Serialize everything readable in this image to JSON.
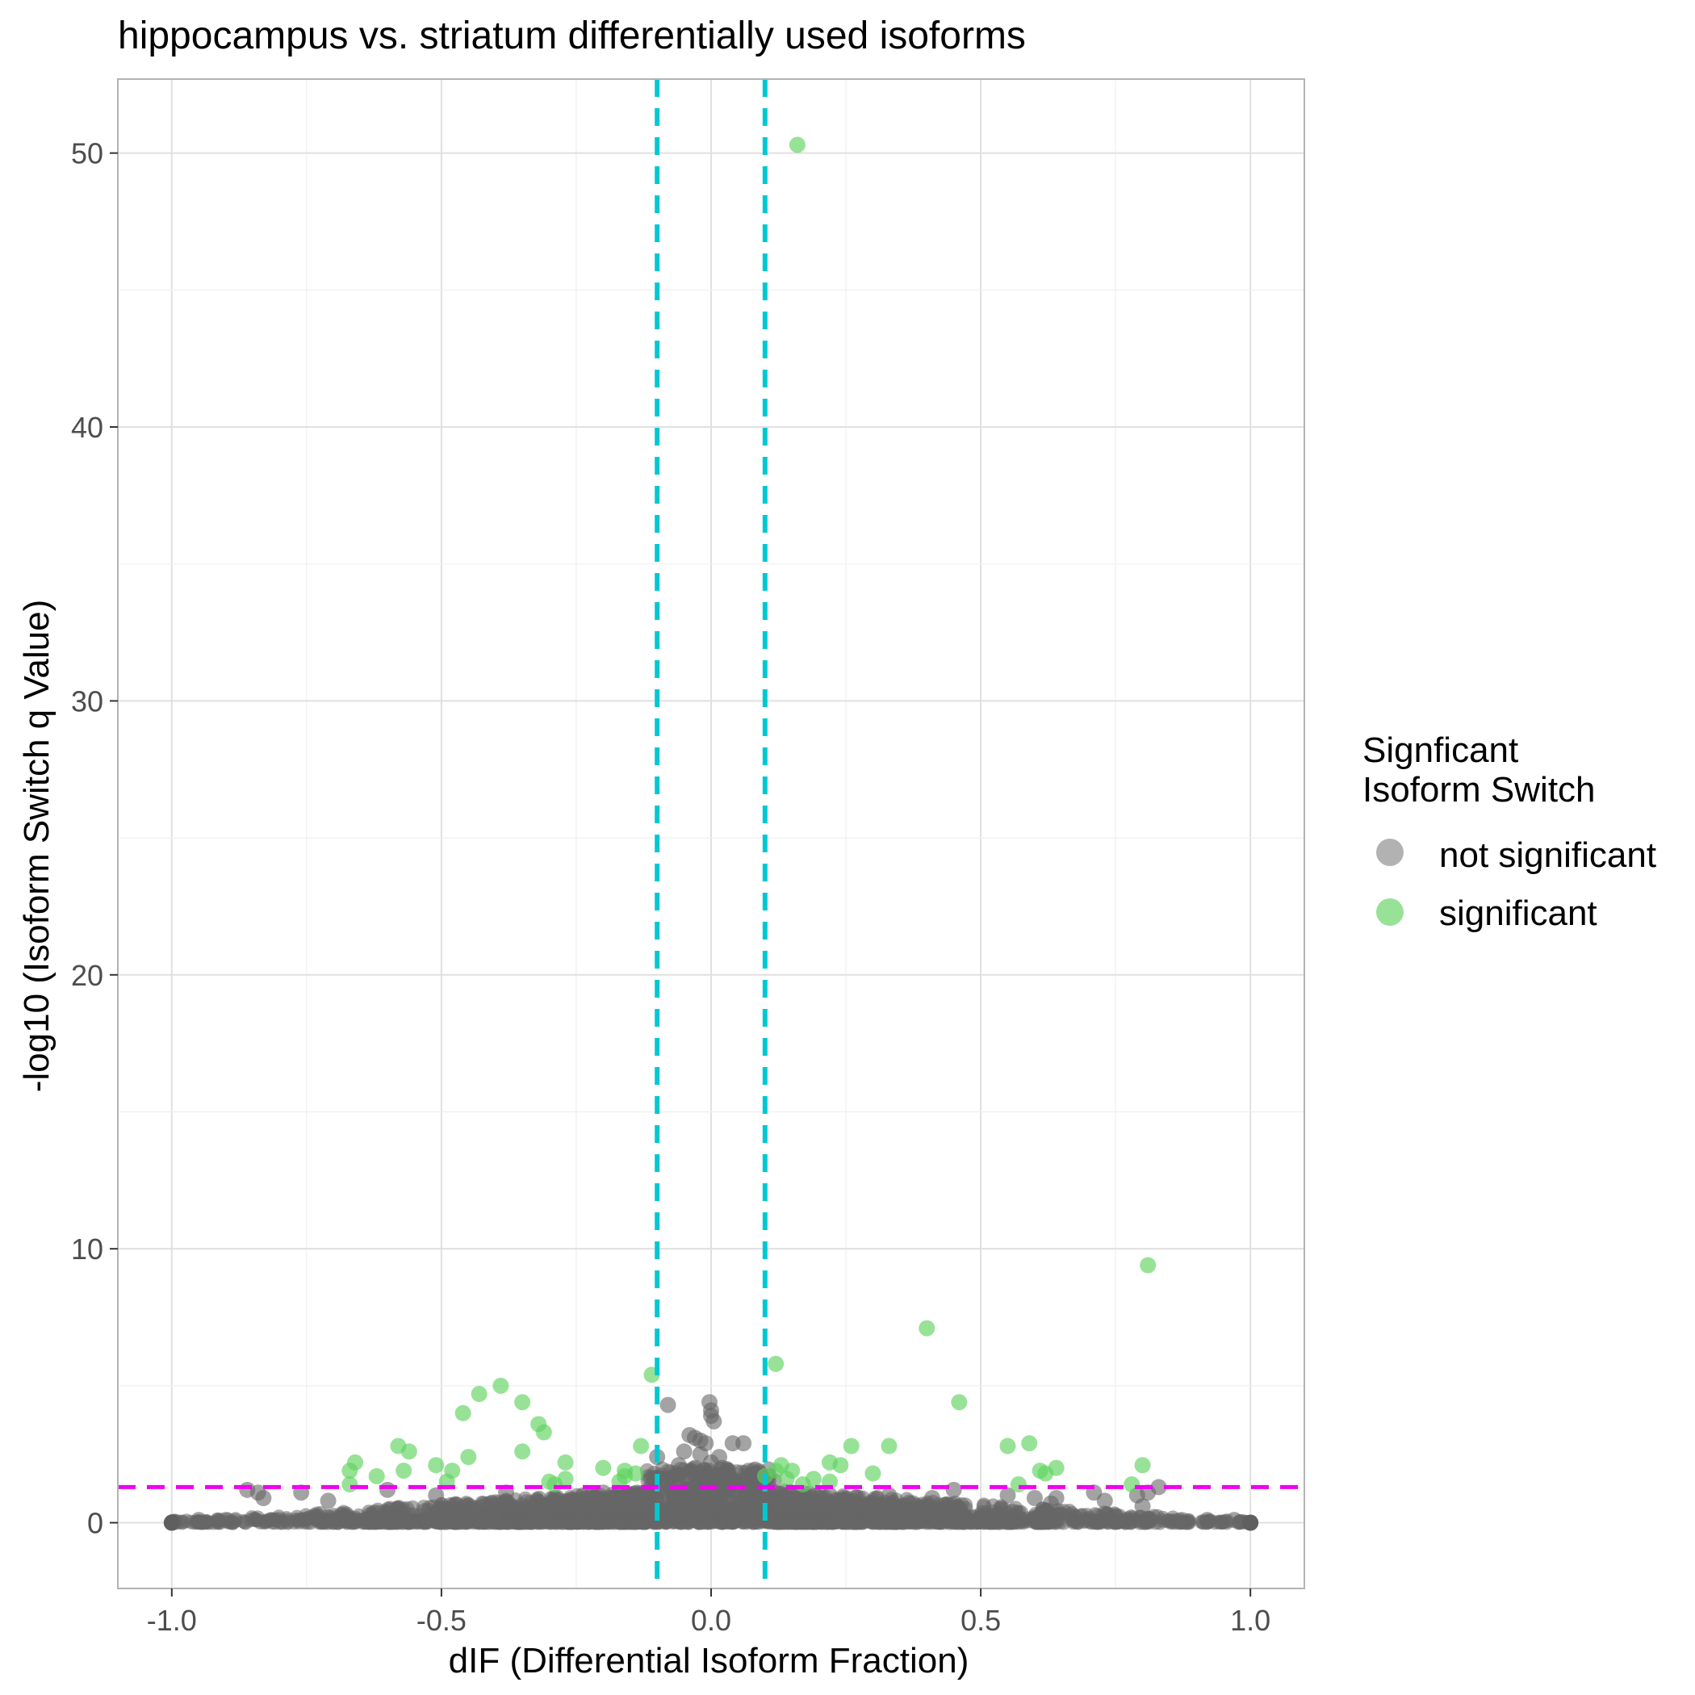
{
  "chart_data": {
    "type": "scatter",
    "title": "hippocampus vs. striatum differentially used isoforms",
    "xlabel": "dIF (Differential Isoform Fraction)",
    "ylabel": "-log10 (Isoform Switch q Value)",
    "xlim": [
      -1.1,
      1.1
    ],
    "ylim": [
      -2.4,
      52.7
    ],
    "x_ticks": [
      -1.0,
      -0.5,
      0.0,
      0.5,
      1.0
    ],
    "x_tick_labels": [
      "-1.0",
      "-0.5",
      "0.0",
      "0.5",
      "1.0"
    ],
    "y_ticks": [
      0,
      10,
      20,
      30,
      40,
      50
    ],
    "y_tick_labels": [
      "0",
      "10",
      "20",
      "30",
      "40",
      "50"
    ],
    "grid": true,
    "legend": {
      "title": "Signficant\nIsoform Switch",
      "placement": "right",
      "entries": [
        {
          "label": "not significant",
          "color": "#666666"
        },
        {
          "label": "significant",
          "color": "#5fd35f"
        }
      ]
    },
    "reference_lines": {
      "vertical_x": [
        -0.1,
        0.1
      ],
      "vertical_color": "#00c8d2",
      "horizontal_y": [
        1.3
      ],
      "horizontal_color": "#ee00ee"
    },
    "series": [
      {
        "name": "significant",
        "color": "#5fd35f",
        "points": [
          [
            0.16,
            50.3
          ],
          [
            0.81,
            9.4
          ],
          [
            0.4,
            7.1
          ],
          [
            -0.11,
            5.4
          ],
          [
            0.12,
            5.8
          ],
          [
            -0.39,
            5.0
          ],
          [
            -0.43,
            4.7
          ],
          [
            -0.35,
            4.4
          ],
          [
            0.46,
            4.4
          ],
          [
            -0.46,
            4.0
          ],
          [
            -0.32,
            3.6
          ],
          [
            -0.31,
            3.3
          ],
          [
            0.55,
            2.8
          ],
          [
            0.59,
            2.9
          ],
          [
            0.33,
            2.8
          ],
          [
            0.26,
            2.8
          ],
          [
            -0.58,
            2.8
          ],
          [
            -0.56,
            2.6
          ],
          [
            -0.35,
            2.6
          ],
          [
            -0.13,
            2.8
          ],
          [
            -0.45,
            2.4
          ],
          [
            -0.66,
            2.2
          ],
          [
            -0.67,
            1.9
          ],
          [
            -0.62,
            1.7
          ],
          [
            -0.51,
            2.1
          ],
          [
            -0.57,
            1.9
          ],
          [
            -0.48,
            1.9
          ],
          [
            -0.27,
            2.2
          ],
          [
            -0.2,
            2.0
          ],
          [
            -0.16,
            1.9
          ],
          [
            -0.16,
            1.7
          ],
          [
            -0.14,
            1.8
          ],
          [
            -0.17,
            1.5
          ],
          [
            0.13,
            2.1
          ],
          [
            0.12,
            1.9
          ],
          [
            0.15,
            1.9
          ],
          [
            0.14,
            1.6
          ],
          [
            0.17,
            1.4
          ],
          [
            0.19,
            1.6
          ],
          [
            0.22,
            2.2
          ],
          [
            0.24,
            2.1
          ],
          [
            0.22,
            1.5
          ],
          [
            0.3,
            1.8
          ],
          [
            0.8,
            2.1
          ],
          [
            0.61,
            1.9
          ],
          [
            0.62,
            1.8
          ],
          [
            0.64,
            2.0
          ],
          [
            -0.67,
            1.4
          ],
          [
            -0.3,
            1.5
          ],
          [
            -0.29,
            1.4
          ],
          [
            -0.27,
            1.6
          ],
          [
            -0.49,
            1.5
          ],
          [
            0.57,
            1.4
          ],
          [
            0.78,
            1.4
          ],
          [
            0.1,
            1.7
          ]
        ]
      },
      {
        "name": "not significant",
        "color": "#666666",
        "points": [
          [
            -0.08,
            4.3
          ],
          [
            -0.003,
            4.4
          ],
          [
            0.0,
            4.1
          ],
          [
            0.0,
            3.9
          ],
          [
            0.005,
            3.7
          ],
          [
            -0.04,
            3.2
          ],
          [
            -0.03,
            3.1
          ],
          [
            -0.02,
            3.0
          ],
          [
            -0.01,
            2.9
          ],
          [
            0.04,
            2.9
          ],
          [
            0.06,
            2.9
          ],
          [
            -0.05,
            2.6
          ],
          [
            -0.02,
            2.5
          ],
          [
            0.015,
            2.4
          ],
          [
            -0.1,
            2.4
          ],
          [
            0.0,
            2.2
          ],
          [
            -0.06,
            2.1
          ],
          [
            -0.03,
            2.0
          ],
          [
            0.02,
            2.0
          ],
          [
            0.03,
            1.9
          ],
          [
            -0.01,
            1.8
          ],
          [
            0.09,
            1.7
          ],
          [
            -0.09,
            1.6
          ],
          [
            -0.84,
            1.1
          ],
          [
            -0.83,
            0.9
          ],
          [
            -0.76,
            1.1
          ],
          [
            -0.71,
            0.8
          ],
          [
            -0.86,
            1.2
          ],
          [
            0.71,
            1.1
          ],
          [
            0.73,
            0.8
          ],
          [
            0.79,
            1.0
          ],
          [
            0.81,
            1.1
          ],
          [
            0.83,
            1.3
          ],
          [
            0.8,
            0.6
          ],
          [
            0.64,
            0.9
          ],
          [
            0.63,
            0.7
          ],
          [
            0.45,
            1.2
          ],
          [
            0.41,
            0.9
          ],
          [
            -0.51,
            1.0
          ],
          [
            -0.38,
            1.1
          ],
          [
            0.33,
            1.0
          ],
          [
            0.22,
            1.0
          ],
          [
            -0.2,
            1.1
          ],
          [
            -0.6,
            1.2
          ],
          [
            0.55,
            1.0
          ],
          [
            0.6,
            0.9
          ],
          [
            -0.95,
            0.1
          ],
          [
            -0.9,
            0.1
          ],
          [
            0.92,
            0.1
          ],
          [
            0.97,
            0.1
          ],
          [
            1.0,
            0.0
          ],
          [
            -1.0,
            0.0
          ]
        ]
      }
    ],
    "bulk_not_significant": {
      "description": "dense band of not-significant points along y=0",
      "x_range": [
        -1.0,
        1.0
      ]
    }
  }
}
